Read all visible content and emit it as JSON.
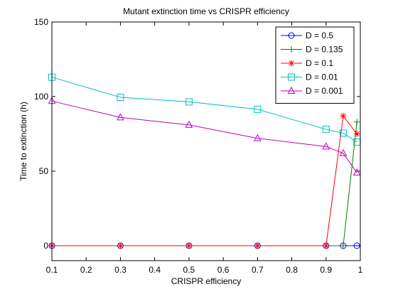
{
  "chart_data": {
    "type": "line",
    "title": "Mutant extinction time vs CRISPR efficiency",
    "xlabel": "CRISPR efficiency",
    "ylabel": "Time to extinction (h)",
    "xlim": [
      0.1,
      1
    ],
    "ylim": [
      -10,
      150
    ],
    "xticks": [
      0.1,
      0.2,
      0.3,
      0.4,
      0.5,
      0.6,
      0.7,
      0.8,
      0.9,
      1
    ],
    "xtick_labels": [
      "0.1",
      "0.2",
      "0.3",
      "0.4",
      "0.5",
      "0.6",
      "0.7",
      "0.8",
      "0.9",
      "1"
    ],
    "yticks": [
      0,
      50,
      100,
      150
    ],
    "ytick_labels": [
      "0",
      "50",
      "100",
      "150"
    ],
    "grid": false,
    "legend_position": "top-right",
    "series": [
      {
        "name": "D = 0.5",
        "color": "#0000ff",
        "marker": "circle",
        "x": [
          0.1,
          0.3,
          0.5,
          0.7,
          0.9,
          0.95,
          0.99
        ],
        "y": [
          0,
          0,
          0,
          0,
          0,
          0,
          0
        ]
      },
      {
        "name": "D = 0.135",
        "color": "#008000",
        "marker": "plus",
        "x": [
          0.1,
          0.3,
          0.5,
          0.7,
          0.9,
          0.95,
          0.99
        ],
        "y": [
          0,
          0,
          0,
          0,
          0,
          0,
          83
        ]
      },
      {
        "name": "D = 0.1",
        "color": "#ff0000",
        "marker": "asterisk",
        "x": [
          0.1,
          0.3,
          0.5,
          0.7,
          0.9,
          0.95,
          0.99
        ],
        "y": [
          0,
          0,
          0,
          0,
          0,
          87,
          75
        ]
      },
      {
        "name": "D = 0.01",
        "color": "#00bfbf",
        "marker": "square",
        "x": [
          0.1,
          0.3,
          0.5,
          0.7,
          0.9,
          0.95,
          0.99
        ],
        "y": [
          113,
          99.5,
          96.5,
          91.5,
          78,
          75.5,
          69.5
        ]
      },
      {
        "name": "D = 0.001",
        "color": "#bf00bf",
        "marker": "triangle",
        "x": [
          0.1,
          0.3,
          0.5,
          0.7,
          0.9,
          0.95,
          0.99
        ],
        "y": [
          97,
          86,
          81,
          72,
          66.5,
          62,
          49
        ]
      }
    ]
  }
}
